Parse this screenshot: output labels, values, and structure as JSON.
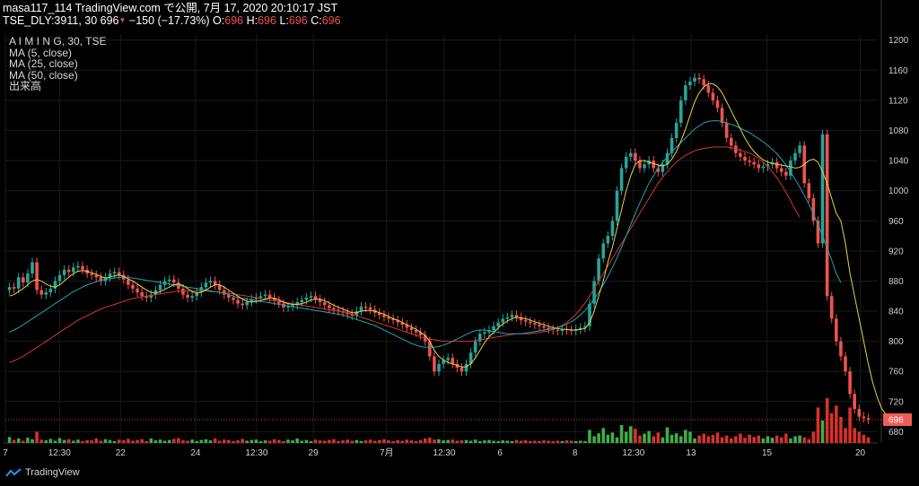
{
  "header": {
    "line1": "masa117_114 TradingView.com で公開, 7月 17, 2020 20:10:17 JST",
    "line2_prefix": "TSE_DLY:3911, 30 696",
    "arrow": "▼",
    "change": "−150 (−17.73%)",
    "open_label": "O:",
    "open": "696",
    "high_label": "H:",
    "high": "696",
    "low_label": "L:",
    "low": "696",
    "close_label": "C:",
    "close": "696"
  },
  "legend": {
    "title": "A I M I N G, 30, TSE",
    "ma5": "MA (5, close)",
    "ma25": "MA (25, close)",
    "ma50": "MA (50, close)",
    "volume": "出来高"
  },
  "footer": {
    "brand": "TradingView"
  },
  "colors": {
    "up": "#26a69a",
    "down": "#ef5350",
    "vol_up": "#3fae49",
    "vol_down": "#d9312b",
    "ma5": "#e6d04a",
    "ma25": "#1ba3b8",
    "ma50": "#d8342d",
    "price_line": "#e03a3a",
    "price_tag": "#f05c56",
    "grid": "#1a1a1a",
    "axis_text": "#d0d0d0"
  },
  "chart_data": {
    "type": "candlestick",
    "title": "A I M I N G, 30, TSE",
    "price_axis": {
      "ticks": [
        1200,
        1160,
        1120,
        1080,
        1040,
        1000,
        960,
        920,
        880,
        840,
        800,
        760,
        720,
        680
      ],
      "range": [
        665,
        1208
      ]
    },
    "last_price": 696,
    "time_axis": {
      "ticks": [
        "7",
        "12:30",
        "22",
        "24",
        "12:30",
        "29",
        "7月",
        "12:30",
        "6",
        "8",
        "12:30",
        "13",
        "15",
        "20"
      ]
    },
    "close_series": [
      872,
      870,
      885,
      878,
      890,
      905,
      868,
      862,
      865,
      870,
      880,
      888,
      895,
      892,
      898,
      900,
      895,
      890,
      888,
      885,
      880,
      885,
      890,
      892,
      888,
      882,
      875,
      870,
      865,
      860,
      858,
      862,
      868,
      875,
      880,
      882,
      878,
      870,
      862,
      858,
      860,
      865,
      872,
      878,
      880,
      875,
      868,
      862,
      858,
      855,
      850,
      848,
      852,
      856,
      858,
      860,
      862,
      858,
      854,
      850,
      845,
      846,
      848,
      852,
      855,
      858,
      860,
      856,
      852,
      848,
      844,
      842,
      840,
      838,
      836,
      834,
      840,
      846,
      845,
      842,
      838,
      835,
      832,
      830,
      828,
      825,
      822,
      818,
      815,
      812,
      808,
      800,
      780,
      760,
      770,
      775,
      778,
      770,
      765,
      760,
      770,
      785,
      800,
      810,
      812,
      815,
      820,
      825,
      830,
      832,
      835,
      832,
      828,
      826,
      824,
      822,
      820,
      818,
      816,
      815,
      814,
      816,
      815,
      814,
      816,
      818,
      820,
      850,
      880,
      910,
      930,
      940,
      960,
      1000,
      1030,
      1045,
      1050,
      1040,
      1030,
      1035,
      1040,
      1030,
      1025,
      1035,
      1050,
      1070,
      1090,
      1120,
      1140,
      1145,
      1150,
      1148,
      1140,
      1130,
      1120,
      1110,
      1090,
      1070,
      1060,
      1050,
      1045,
      1040,
      1038,
      1035,
      1030,
      1032,
      1035,
      1038,
      1030,
      1025,
      1020,
      1040,
      1050,
      1060,
      1010,
      990,
      960,
      930,
      1075,
      860,
      830,
      800,
      780,
      760,
      730,
      710,
      700,
      698,
      696
    ],
    "ma5": [
      860,
      862,
      866,
      870,
      875,
      880,
      882,
      880,
      876,
      873,
      872,
      875,
      880,
      885,
      890,
      893,
      894,
      893,
      891,
      889,
      886,
      884,
      885,
      887,
      888,
      886,
      883,
      880,
      876,
      872,
      868,
      865,
      864,
      866,
      869,
      872,
      875,
      876,
      874,
      870,
      866,
      864,
      865,
      868,
      872,
      875,
      875,
      872,
      868,
      864,
      860,
      856,
      853,
      852,
      853,
      854,
      856,
      858,
      857,
      855,
      852,
      850,
      849,
      849,
      850,
      852,
      855,
      856,
      856,
      854,
      851,
      848,
      845,
      843,
      840,
      838,
      838,
      840,
      841,
      841,
      840,
      838,
      836,
      833,
      830,
      828,
      825,
      822,
      819,
      816,
      812,
      808,
      800,
      788,
      780,
      775,
      772,
      770,
      768,
      766,
      766,
      770,
      778,
      788,
      798,
      806,
      812,
      818,
      823,
      827,
      830,
      832,
      831,
      830,
      828,
      826,
      824,
      822,
      820,
      818,
      817,
      816,
      816,
      815,
      815,
      816,
      817,
      825,
      840,
      860,
      880,
      905,
      925,
      950,
      975,
      1000,
      1020,
      1035,
      1040,
      1040,
      1038,
      1036,
      1034,
      1033,
      1035,
      1042,
      1052,
      1066,
      1082,
      1100,
      1118,
      1130,
      1138,
      1142,
      1142,
      1138,
      1130,
      1118,
      1106,
      1094,
      1082,
      1070,
      1060,
      1052,
      1046,
      1041,
      1038,
      1036,
      1035,
      1034,
      1033,
      1032,
      1030,
      1031,
      1035,
      1040,
      1042,
      1038,
      1025,
      1010,
      990,
      970,
      960,
      930,
      890,
      860,
      830,
      800,
      770,
      745,
      725,
      710,
      702,
      698,
      697
    ],
    "ma25": [
      812,
      815,
      818,
      822,
      826,
      830,
      834,
      838,
      842,
      846,
      850,
      854,
      858,
      862,
      866,
      869,
      872,
      875,
      877,
      879,
      881,
      882,
      883,
      884,
      885,
      885,
      885,
      884,
      883,
      882,
      881,
      880,
      879,
      878,
      877,
      876,
      875,
      874,
      873,
      872,
      871,
      870,
      869,
      868,
      867,
      866,
      865,
      864,
      862,
      860,
      858,
      857,
      856,
      855,
      854,
      853,
      852,
      851,
      850,
      849,
      848,
      847,
      846,
      845,
      844,
      843,
      842,
      841,
      840,
      839,
      838,
      837,
      836,
      835,
      833,
      831,
      829,
      827,
      825,
      823,
      821,
      818,
      815,
      812,
      809,
      806,
      803,
      800,
      797,
      795,
      793,
      792,
      792,
      792,
      793,
      795,
      797,
      800,
      803,
      806,
      809,
      812,
      814,
      815,
      815,
      814,
      813,
      812,
      811,
      810,
      810,
      810,
      810,
      811,
      812,
      813,
      814,
      815,
      816,
      817,
      818,
      820,
      823,
      826,
      830,
      835,
      841,
      848,
      856,
      865,
      875,
      886,
      898,
      911,
      925,
      940,
      955,
      970,
      984,
      997,
      1010,
      1020,
      1030,
      1038,
      1045,
      1052,
      1058,
      1064,
      1070,
      1076,
      1082,
      1086,
      1090,
      1092,
      1093,
      1093,
      1092,
      1090,
      1088,
      1086,
      1083,
      1080,
      1077,
      1073,
      1069,
      1065,
      1060,
      1055,
      1049,
      1042,
      1034,
      1025,
      1015,
      1005,
      994,
      982,
      969,
      955,
      940,
      924,
      908,
      890,
      878
    ],
    "ma50": [
      772,
      774,
      777,
      780,
      784,
      788,
      792,
      796,
      800,
      804,
      808,
      812,
      816,
      820,
      824,
      828,
      831,
      834,
      837,
      840,
      843,
      845,
      847,
      849,
      851,
      853,
      855,
      857,
      858,
      859,
      860,
      861,
      862,
      863,
      864,
      865,
      866,
      867,
      867,
      867,
      867,
      867,
      867,
      867,
      866,
      866,
      865,
      864,
      864,
      863,
      862,
      861,
      860,
      859,
      858,
      857,
      856,
      855,
      854,
      853,
      852,
      851,
      850,
      849,
      848,
      847,
      846,
      845,
      844,
      843,
      842,
      841,
      840,
      839,
      838,
      836,
      834,
      832,
      830,
      828,
      826,
      824,
      822,
      820,
      818,
      816,
      814,
      812,
      810,
      808,
      806,
      804,
      803,
      802,
      801,
      800,
      800,
      800,
      800,
      800,
      800,
      800,
      801,
      802,
      803,
      804,
      805,
      806,
      807,
      808,
      809,
      810,
      810,
      810,
      810,
      811,
      812,
      813,
      814,
      816,
      818,
      821,
      825,
      830,
      836,
      843,
      851,
      860,
      870,
      880,
      890,
      900,
      910,
      920,
      930,
      940,
      950,
      960,
      970,
      980,
      990,
      1000,
      1010,
      1018,
      1025,
      1032,
      1038,
      1043,
      1047,
      1050,
      1053,
      1055,
      1056,
      1057,
      1058,
      1058,
      1058,
      1058,
      1057,
      1056,
      1054,
      1052,
      1050,
      1047,
      1043,
      1038,
      1032,
      1025,
      1017,
      1008,
      998,
      987,
      975,
      965
    ],
    "volume": [
      16,
      8,
      12,
      6,
      14,
      10,
      30,
      9,
      7,
      11,
      6,
      13,
      8,
      10,
      6,
      9,
      5,
      8,
      7,
      12,
      6,
      10,
      8,
      5,
      9,
      7,
      11,
      6,
      8,
      10,
      5,
      12,
      7,
      9,
      6,
      8,
      11,
      13,
      7,
      6,
      9,
      5,
      8,
      10,
      7,
      12,
      6,
      9,
      8,
      5,
      7,
      11,
      6,
      8,
      9,
      5,
      7,
      6,
      10,
      8,
      5,
      9,
      7,
      12,
      6,
      8,
      5,
      9,
      7,
      6,
      8,
      10,
      5,
      7,
      9,
      6,
      8,
      5,
      7,
      9,
      6,
      8,
      10,
      7,
      5,
      8,
      6,
      9,
      7,
      5,
      8,
      12,
      14,
      9,
      10,
      7,
      8,
      9,
      6,
      7,
      8,
      6,
      9,
      5,
      7,
      8,
      6,
      5,
      7,
      6,
      5,
      8,
      6,
      7,
      5,
      6,
      5,
      7,
      6,
      5,
      6,
      5,
      7,
      6,
      5,
      6,
      5,
      35,
      18,
      26,
      40,
      22,
      28,
      15,
      48,
      30,
      45,
      38,
      20,
      25,
      32,
      18,
      28,
      15,
      42,
      22,
      26,
      18,
      35,
      30,
      12,
      20,
      25,
      18,
      22,
      28,
      15,
      20,
      12,
      18,
      25,
      14,
      22,
      16,
      20,
      12,
      18,
      14,
      20,
      15,
      25,
      12,
      18,
      20,
      15,
      10,
      30,
      95,
      60,
      120,
      80,
      100,
      70,
      40,
      95,
      40,
      30,
      22,
      15
    ],
    "vol_max": 120
  }
}
